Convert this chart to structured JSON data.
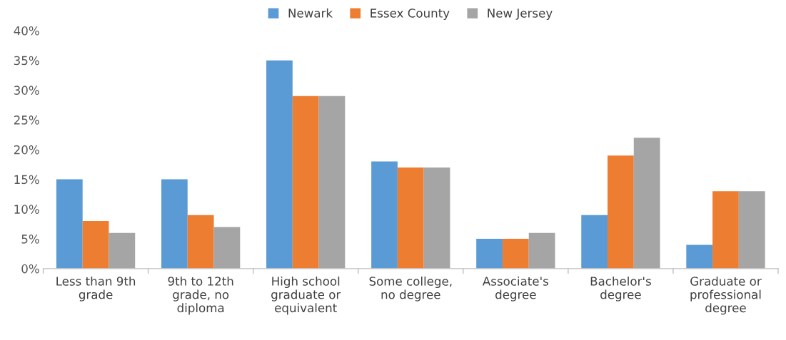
{
  "chart_data": {
    "type": "bar",
    "categories": [
      "Less than 9th\ngrade",
      "9th to 12th\ngrade, no\ndiploma",
      "High school\ngraduate or\nequivalent",
      "Some college,\nno degree",
      "Associate's\ndegree",
      "Bachelor's\ndegree",
      "Graduate or\nprofessional\ndegree"
    ],
    "series": [
      {
        "name": "Newark",
        "color": "#5b9bd5",
        "values": [
          15,
          15,
          35,
          18,
          5,
          9,
          4
        ]
      },
      {
        "name": "Essex County",
        "color": "#ed7d31",
        "values": [
          8,
          9,
          29,
          17,
          5,
          19,
          13
        ]
      },
      {
        "name": "New Jersey",
        "color": "#a5a5a5",
        "values": [
          6,
          7,
          29,
          17,
          6,
          22,
          13
        ]
      }
    ],
    "ylim": [
      0,
      40
    ],
    "yticks": [
      {
        "value": 0,
        "label": "0%"
      },
      {
        "value": 5,
        "label": "5%"
      },
      {
        "value": 10,
        "label": "10%"
      },
      {
        "value": 15,
        "label": "15%"
      },
      {
        "value": 20,
        "label": "20%"
      },
      {
        "value": 25,
        "label": "25%"
      },
      {
        "value": 30,
        "label": "30%"
      },
      {
        "value": 35,
        "label": "35%"
      },
      {
        "value": 40,
        "label": "40%"
      }
    ],
    "grid": false,
    "legend": "top"
  }
}
